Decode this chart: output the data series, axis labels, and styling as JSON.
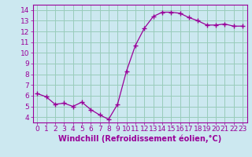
{
  "x": [
    0,
    1,
    2,
    3,
    4,
    5,
    6,
    7,
    8,
    9,
    10,
    11,
    12,
    13,
    14,
    15,
    16,
    17,
    18,
    19,
    20,
    21,
    22,
    23
  ],
  "y": [
    6.2,
    5.9,
    5.2,
    5.3,
    5.0,
    5.4,
    4.7,
    4.2,
    3.8,
    5.2,
    8.3,
    10.7,
    12.3,
    13.4,
    13.8,
    13.8,
    13.7,
    13.3,
    13.0,
    12.6,
    12.6,
    12.7,
    12.5,
    12.5
  ],
  "line_color": "#990099",
  "marker": "+",
  "marker_size": 4,
  "marker_lw": 1.0,
  "xlabel": "Windchill (Refroidissement éolien,°C)",
  "ylabel_ticks": [
    4,
    5,
    6,
    7,
    8,
    9,
    10,
    11,
    12,
    13,
    14
  ],
  "xlim": [
    -0.5,
    23.5
  ],
  "ylim": [
    3.5,
    14.5
  ],
  "bg_color": "#cce8f0",
  "grid_color": "#99ccbb",
  "xlabel_fontsize": 7.0,
  "tick_fontsize": 6.5,
  "line_width": 0.9
}
